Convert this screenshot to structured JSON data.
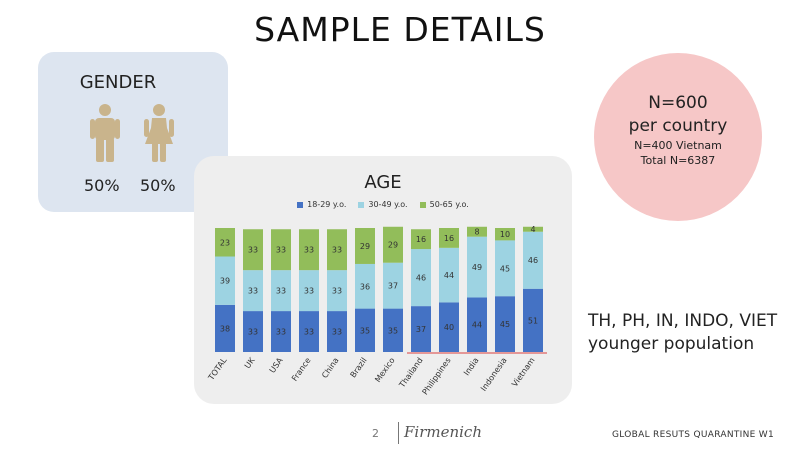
{
  "slide": {
    "title": "SAMPLE DETAILS",
    "page_number": "2",
    "brand": "Firmenich",
    "footer_text": "GLOBAL RESUTS QUARANTINE W1"
  },
  "gender": {
    "title": "GENDER",
    "male_pct": "50%",
    "female_pct": "50%",
    "icon_color": "#c9b48c"
  },
  "sample_size": {
    "line1": "N=600",
    "line2": "per country",
    "line3": "N=400 Vietnam",
    "line4": "Total N=6387",
    "circle_color": "#f6c7c7"
  },
  "note": {
    "line1": "TH, PH, IN, INDO, VIET",
    "line2": "younger population"
  },
  "chart_data": {
    "type": "bar",
    "stacked": true,
    "title": "AGE",
    "categories": [
      "TOTAL",
      "UK",
      "USA",
      "France",
      "China",
      "Brazil",
      "Mexico",
      "Thailand",
      "Philippines",
      "India",
      "Indonesia",
      "Vietnam"
    ],
    "series": [
      {
        "name": "18-29 y.o.",
        "color": "#4472c4",
        "values": [
          38,
          33,
          33,
          33,
          33,
          35,
          35,
          37,
          40,
          44,
          45,
          51
        ]
      },
      {
        "name": "30-49 y.o.",
        "color": "#9dd3e2",
        "values": [
          39,
          33,
          33,
          33,
          33,
          36,
          37,
          46,
          44,
          49,
          45,
          46
        ]
      },
      {
        "name": "50-65 y.o.",
        "color": "#92bd5a",
        "values": [
          23,
          33,
          33,
          33,
          33,
          29,
          29,
          16,
          16,
          8,
          10,
          4
        ]
      }
    ],
    "ylim": [
      0,
      100
    ],
    "legend_position": "top",
    "highlight_color": "#e07a7a"
  }
}
